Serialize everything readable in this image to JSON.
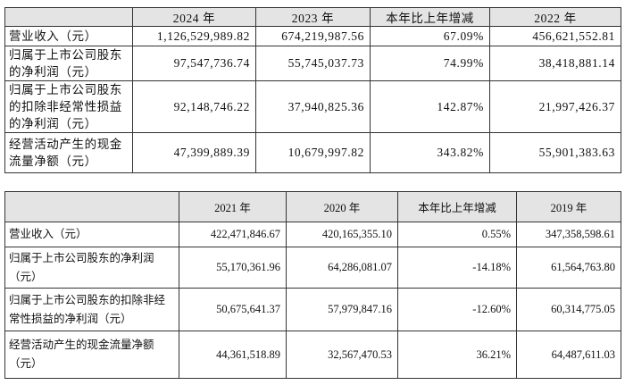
{
  "table1": {
    "header": [
      "",
      "2024 年",
      "2023 年",
      "本年比上年增减",
      "2022 年"
    ],
    "rows": [
      [
        "营业收入（元）",
        "1,126,529,989.82",
        "674,219,987.56",
        "67.09%",
        "456,621,552.81"
      ],
      [
        "归属于上市公司股东的净利润（元）",
        "97,547,736.74",
        "55,745,037.73",
        "74.99%",
        "38,418,881.14"
      ],
      [
        "归属于上市公司股东的扣除非经常性损益的净利润（元）",
        "92,148,746.22",
        "37,940,825.36",
        "142.87%",
        "21,997,426.37"
      ],
      [
        "经营活动产生的现金流量净额（元）",
        "47,399,889.39",
        "10,679,997.82",
        "343.82%",
        "55,901,383.63"
      ]
    ]
  },
  "table2": {
    "header": [
      "",
      "2021 年",
      "2020 年",
      "本年比上年增减",
      "2019 年"
    ],
    "rows": [
      [
        "营业收入（元）",
        "422,471,846.67",
        "420,165,355.10",
        "0.55%",
        "347,358,598.61"
      ],
      [
        "归属于上市公司股东的净利润（元）",
        "55,170,361.96",
        "64,286,081.07",
        "-14.18%",
        "61,564,763.80"
      ],
      [
        "归属于上市公司股东的扣除非经常性损益的净利润（元）",
        "50,675,641.37",
        "57,979,847.16",
        "-12.60%",
        "60,314,775.05"
      ],
      [
        "经营活动产生的现金流量净额（元）",
        "44,361,518.89",
        "32,567,470.53",
        "36.21%",
        "64,487,611.03"
      ]
    ]
  }
}
